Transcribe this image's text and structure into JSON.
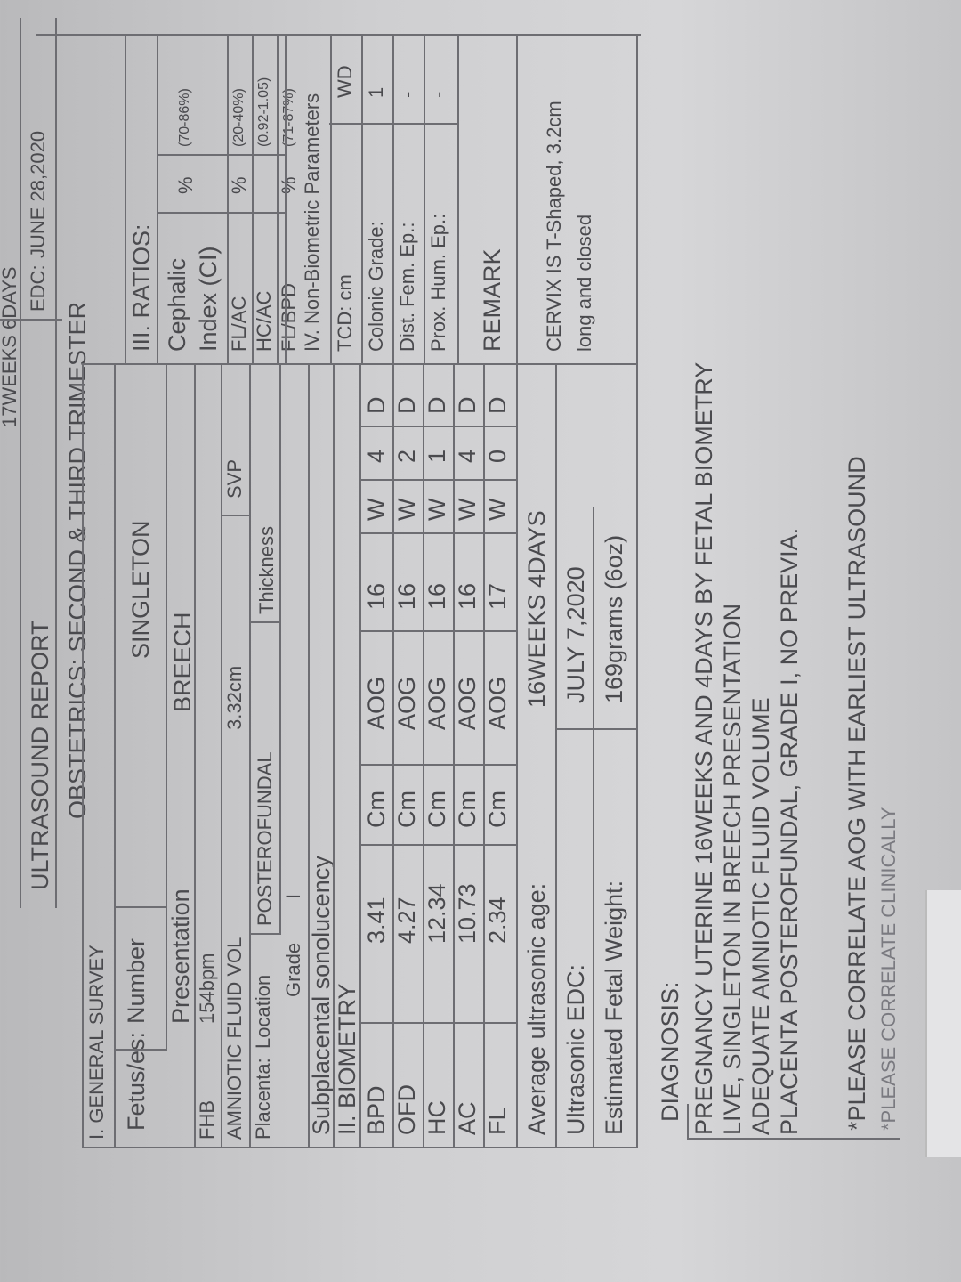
{
  "header": {
    "aog_partial": "17WEEKS 6DAYS",
    "edc_label": "EDC:",
    "edc_value": "JUNE 28,2020",
    "title": "ULTRASOUND REPORT",
    "subtitle": "OBSTETRICS: SECOND & THIRD TRIMESTER"
  },
  "general_survey": {
    "heading": "I. GENERAL SURVEY",
    "fetuses_label": "Fetus/es:",
    "number_label": "Number",
    "number_value": "SINGLETON",
    "presentation_label": "Presentation",
    "presentation_value": "BREECH",
    "fhb_label": "FHB",
    "fhb_value": "154bpm",
    "afv_label": "AMNIOTIC FLUID VOL",
    "afv_value": "3.32cm",
    "svp_label": "SVP",
    "placenta_label": "Placenta:",
    "location_label": "Location",
    "location_value": "POSTEROFUNDAL",
    "thickness_label": "Thickness",
    "grade_label": "Grade",
    "grade_value": "I",
    "subplacental_label": "Subplacental sonolucency"
  },
  "biometry": {
    "heading": "II. BIOMETRY",
    "rows": [
      {
        "param": "BPD",
        "value": "3.41",
        "unit": "Cm",
        "aog": "AOG",
        "weeks": "16",
        "w": "W",
        "days": "4",
        "d": "D"
      },
      {
        "param": "OFD",
        "value": "4.27",
        "unit": "Cm",
        "aog": "AOG",
        "weeks": "16",
        "w": "W",
        "days": "2",
        "d": "D"
      },
      {
        "param": "HC",
        "value": "12.34",
        "unit": "Cm",
        "aog": "AOG",
        "weeks": "16",
        "w": "W",
        "days": "1",
        "d": "D"
      },
      {
        "param": "AC",
        "value": "10.73",
        "unit": "Cm",
        "aog": "AOG",
        "weeks": "16",
        "w": "W",
        "days": "4",
        "d": "D"
      },
      {
        "param": "FL",
        "value": "2.34",
        "unit": "Cm",
        "aog": "AOG",
        "weeks": "17",
        "w": "W",
        "days": "0",
        "d": "D"
      }
    ],
    "avg_age_label": "Average ultrasonic age:",
    "avg_age_value": "16WEEKS  4DAYS",
    "edc_label": "Ultrasonic EDC:",
    "edc_value": "JULY 7,2020",
    "efw_label": "Estimated Fetal Weight:",
    "efw_value": "169grams (6oz)"
  },
  "ratios": {
    "heading": "III. RATIOS:",
    "rows": [
      {
        "label": "Cephalic Index (CI)",
        "unit": "%",
        "range": "(70-86%)"
      },
      {
        "label": "FL/AC",
        "unit": "%",
        "range": "(20-40%)"
      },
      {
        "label": "HC/AC",
        "unit": "",
        "range": "(0.92-1.05)"
      },
      {
        "label": "FL/BPD",
        "unit": "%",
        "range": "(71-87%)"
      }
    ]
  },
  "non_biometric": {
    "heading": "IV. Non-Biometric Parameters",
    "rows": [
      {
        "label": "TCD: cm",
        "value": "WD"
      },
      {
        "label": "Colonic Grade:",
        "value": "1"
      },
      {
        "label": "Dist. Fem. Ep.:",
        "value": "-"
      },
      {
        "label": "Prox. Hum. Ep.:",
        "value": "-"
      }
    ]
  },
  "remark": {
    "heading": "REMARK",
    "line1": "CERVIX IS T-Shaped, 3.2cm",
    "line2": "long and closed"
  },
  "diagnosis": {
    "heading": "DIAGNOSIS:",
    "lines": [
      "PREGNANCY UTERINE  16WEEKS AND 4DAYS BY FETAL BIOMETRY",
      "LIVE, SINGLETON IN BREECH PRESENTATION",
      "ADEQUATE AMNIOTIC FLUID VOLUME",
      "PLACENTA POSTEROFUNDAL, GRADE  I, NO PREVIA."
    ],
    "notes": [
      "*PLEASE CORRELATE AOG WITH EARLIEST ULTRASOUND",
      "*PLEASE  CORRELATE CLINICALLY"
    ]
  }
}
